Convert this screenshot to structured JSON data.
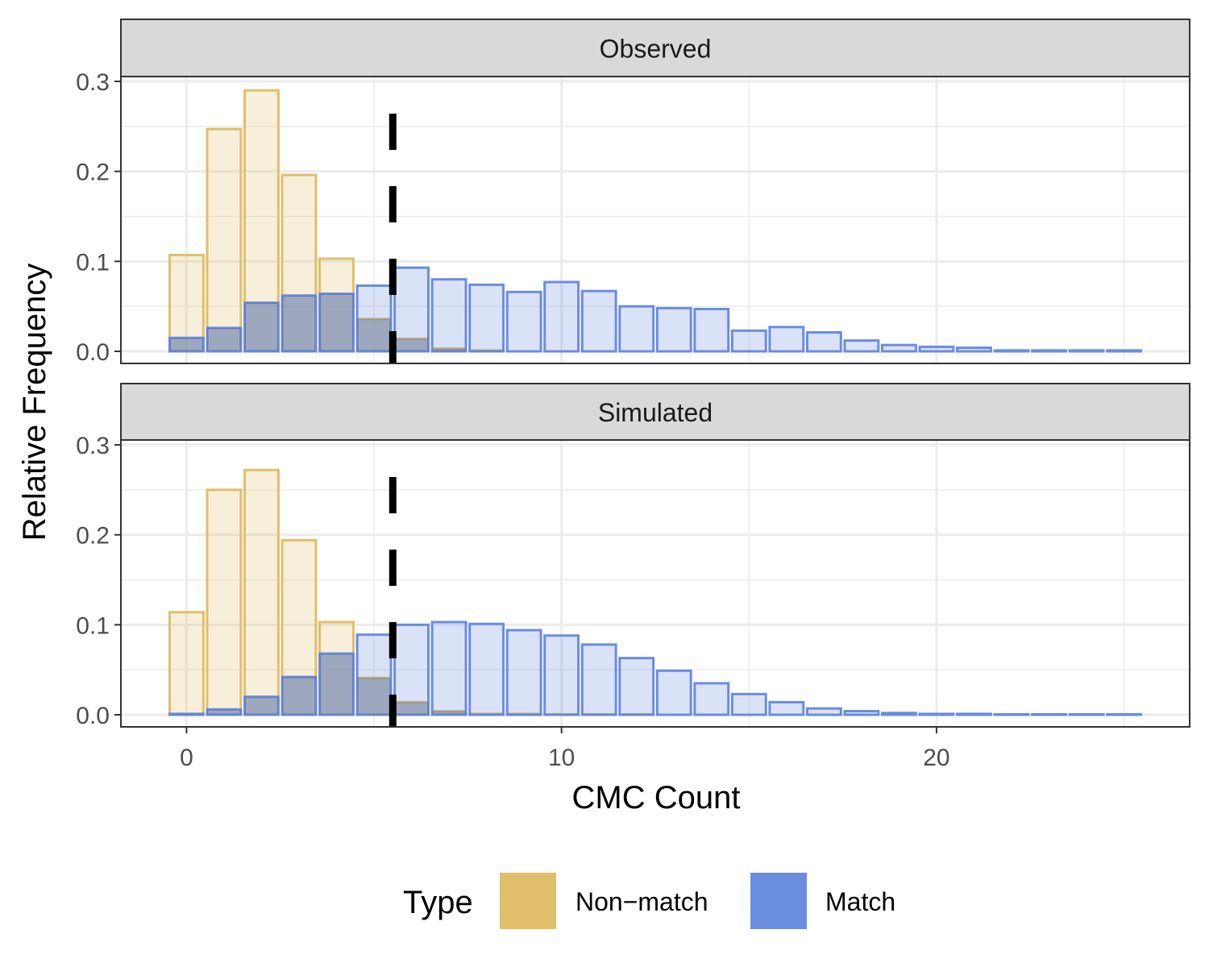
{
  "chart_data": {
    "type": "bar",
    "xlabel": "CMC Count",
    "ylabel": "Relative Frequency",
    "xlim": [
      -1.75,
      26.75
    ],
    "ylim": [
      -0.013,
      0.3
    ],
    "x_ticks": [
      0,
      10,
      20
    ],
    "y_ticks": [
      0.0,
      0.1,
      0.2,
      0.3
    ],
    "y_tick_labels": [
      "0.0",
      "0.1",
      "0.2",
      "0.3"
    ],
    "threshold_x": 5.5,
    "grid": true,
    "legend": {
      "title": "Type",
      "position": "bottom",
      "items": [
        {
          "label": "Non−match",
          "color": "#E1BE6A"
        },
        {
          "label": "Match",
          "color": "#6A8CE1"
        }
      ]
    },
    "colors": {
      "nonmatch": "#E1BE6A",
      "match": "#6A8CE1",
      "strip_fill": "#D9D9D9",
      "threshold": "#000000"
    },
    "panels": [
      {
        "label": "Observed",
        "nonmatch": {
          "x": [
            0,
            1,
            2,
            3,
            4,
            5,
            6,
            7,
            8
          ],
          "values": [
            0.107,
            0.247,
            0.29,
            0.196,
            0.103,
            0.036,
            0.014,
            0.003,
            0.001
          ]
        },
        "match": {
          "x": [
            0,
            1,
            2,
            3,
            4,
            5,
            6,
            7,
            8,
            9,
            10,
            11,
            12,
            13,
            14,
            15,
            16,
            17,
            18,
            19,
            20,
            21,
            22,
            23,
            24,
            25
          ],
          "values": [
            0.015,
            0.026,
            0.054,
            0.062,
            0.064,
            0.073,
            0.093,
            0.08,
            0.074,
            0.066,
            0.077,
            0.067,
            0.05,
            0.048,
            0.047,
            0.023,
            0.027,
            0.021,
            0.012,
            0.007,
            0.005,
            0.004,
            0.001,
            0.001,
            0.001,
            0.001
          ]
        }
      },
      {
        "label": "Simulated",
        "nonmatch": {
          "x": [
            0,
            1,
            2,
            3,
            4,
            5,
            6,
            7,
            8,
            9,
            10,
            11,
            12
          ],
          "values": [
            0.114,
            0.25,
            0.272,
            0.194,
            0.103,
            0.041,
            0.014,
            0.004,
            0.001,
            0.001,
            0.0005,
            0.0005,
            0.0005
          ]
        },
        "match": {
          "x": [
            0,
            1,
            2,
            3,
            4,
            5,
            6,
            7,
            8,
            9,
            10,
            11,
            12,
            13,
            14,
            15,
            16,
            17,
            18,
            19,
            20,
            21,
            22,
            23,
            24,
            25
          ],
          "values": [
            0.001,
            0.006,
            0.02,
            0.042,
            0.068,
            0.089,
            0.1,
            0.103,
            0.101,
            0.094,
            0.088,
            0.078,
            0.063,
            0.049,
            0.035,
            0.023,
            0.014,
            0.007,
            0.004,
            0.002,
            0.001,
            0.001,
            0.0005,
            0.0005,
            0.0005,
            0.0005
          ]
        }
      }
    ]
  }
}
